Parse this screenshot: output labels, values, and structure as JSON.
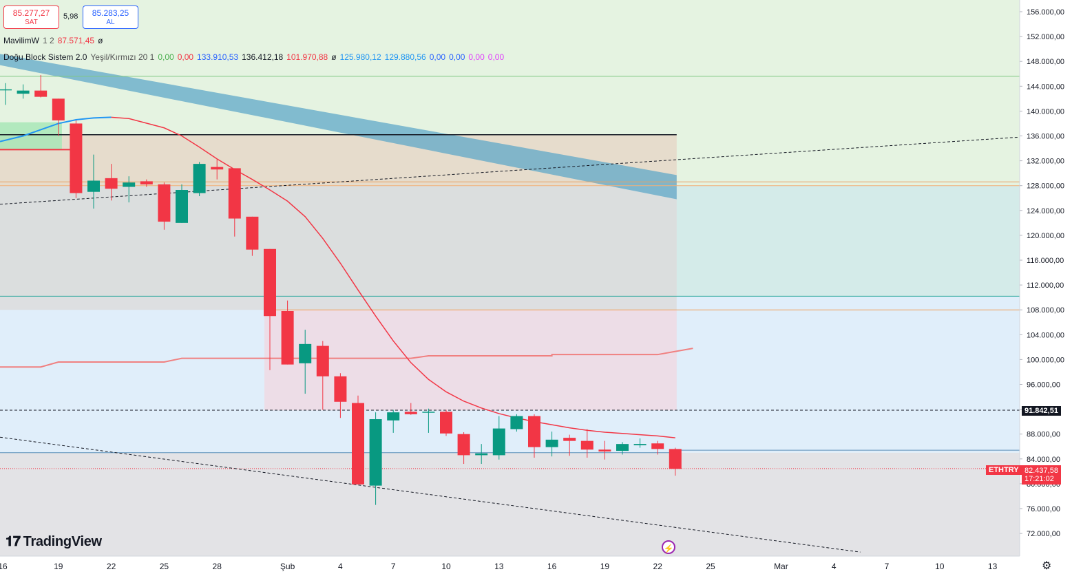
{
  "header": {
    "sell_price": "85.277,27",
    "sell_label": "SAT",
    "spread": "5,98",
    "buy_price": "85.283,25",
    "buy_label": "AL"
  },
  "indicators": [
    {
      "name": "MavilimW",
      "params": "1 2",
      "values": [
        {
          "text": "87.571,45",
          "color": "#f23645"
        },
        {
          "text": "ø",
          "color": "#131722"
        }
      ]
    },
    {
      "name": "Doğu Block Sistem 2.0",
      "params": "Yeşil/Kırmızı 20 1",
      "values": [
        {
          "text": "0,00",
          "color": "#4caf50"
        },
        {
          "text": "0,00",
          "color": "#f23645"
        },
        {
          "text": "133.910,53",
          "color": "#2962ff"
        },
        {
          "text": "136.412,18",
          "color": "#131722"
        },
        {
          "text": "101.970,88",
          "color": "#f23645"
        },
        {
          "text": "ø",
          "color": "#131722"
        },
        {
          "text": "125.980,12",
          "color": "#2196f3"
        },
        {
          "text": "129.880,56",
          "color": "#2196f3"
        },
        {
          "text": "0,00",
          "color": "#2962ff"
        },
        {
          "text": "0,00",
          "color": "#2962ff"
        },
        {
          "text": "0,00",
          "color": "#e040fb"
        },
        {
          "text": "0,00",
          "color": "#e040fb"
        }
      ]
    }
  ],
  "logo_text": "TradingView",
  "icons": {
    "logo": "tradingview-logo-icon",
    "settings": "gear-icon",
    "event": "lightning-bolt-icon"
  },
  "price_labels": {
    "level": "91.842,51",
    "symbol": "ETHTRY",
    "last": "82.437,58",
    "countdown": "17:21:02"
  },
  "chart_data": {
    "type": "candlestick",
    "y_axis": {
      "range": [
        68000,
        158000
      ],
      "tick_step": 4000,
      "ticks": [
        72000,
        76000,
        80000,
        84000,
        88000,
        92000,
        96000,
        100000,
        104000,
        108000,
        112000,
        116000,
        120000,
        124000,
        128000,
        132000,
        136000,
        140000,
        144000,
        148000,
        152000,
        156000
      ],
      "tick_labels": [
        "72.000,00",
        "76.000,00",
        "80.000,00",
        "84.000,00",
        "88.000,00",
        "92.000,00",
        "96.000,00",
        "100.000,00",
        "104.000,00",
        "108.000,00",
        "112.000,00",
        "116.000,00",
        "120.000,00",
        "124.000,00",
        "128.000,00",
        "132.000,00",
        "136.000,00",
        "140.000,00",
        "144.000,00",
        "148.000,00",
        "152.000,00",
        "156.000,00"
      ]
    },
    "x_axis": {
      "labels": [
        {
          "day": 0,
          "text": "16"
        },
        {
          "day": 3,
          "text": "19"
        },
        {
          "day": 6,
          "text": "22"
        },
        {
          "day": 9,
          "text": "25"
        },
        {
          "day": 12,
          "text": "28"
        },
        {
          "day": 16,
          "text": "Şub"
        },
        {
          "day": 19,
          "text": "4"
        },
        {
          "day": 22,
          "text": "7"
        },
        {
          "day": 25,
          "text": "10"
        },
        {
          "day": 28,
          "text": "13"
        },
        {
          "day": 31,
          "text": "16"
        },
        {
          "day": 34,
          "text": "19"
        },
        {
          "day": 37,
          "text": "22"
        },
        {
          "day": 40,
          "text": "25"
        },
        {
          "day": 44,
          "text": "Mar"
        },
        {
          "day": 47,
          "text": "4"
        },
        {
          "day": 50,
          "text": "7"
        },
        {
          "day": 53,
          "text": "10"
        },
        {
          "day": 56,
          "text": "13"
        }
      ],
      "day_range": [
        0,
        57.5
      ]
    },
    "candles": [
      {
        "day": 0,
        "o": 143500,
        "h": 144500,
        "l": 141000,
        "c": 143500
      },
      {
        "day": 1,
        "o": 142800,
        "h": 144300,
        "l": 142000,
        "c": 143300
      },
      {
        "day": 2,
        "o": 143300,
        "h": 145800,
        "l": 142200,
        "c": 142300
      },
      {
        "day": 3,
        "o": 142000,
        "h": 142000,
        "l": 136000,
        "c": 138500
      },
      {
        "day": 4,
        "o": 138000,
        "h": 138500,
        "l": 126000,
        "c": 126800
      },
      {
        "day": 5,
        "o": 127000,
        "h": 133000,
        "l": 124300,
        "c": 128800
      },
      {
        "day": 6,
        "o": 129200,
        "h": 131500,
        "l": 125600,
        "c": 127500
      },
      {
        "day": 7,
        "o": 127800,
        "h": 129500,
        "l": 125300,
        "c": 128500
      },
      {
        "day": 8,
        "o": 128700,
        "h": 129000,
        "l": 127800,
        "c": 128200
      },
      {
        "day": 9,
        "o": 128200,
        "h": 128500,
        "l": 120900,
        "c": 122200
      },
      {
        "day": 10,
        "o": 122000,
        "h": 128200,
        "l": 122000,
        "c": 127300
      },
      {
        "day": 11,
        "o": 126800,
        "h": 131800,
        "l": 126300,
        "c": 131500
      },
      {
        "day": 12,
        "o": 131000,
        "h": 132200,
        "l": 129000,
        "c": 130600
      },
      {
        "day": 13,
        "o": 130800,
        "h": 130800,
        "l": 119800,
        "c": 122700
      },
      {
        "day": 14,
        "o": 123000,
        "h": 123000,
        "l": 116700,
        "c": 117700
      },
      {
        "day": 15,
        "o": 117800,
        "h": 117800,
        "l": 98300,
        "c": 107000
      },
      {
        "day": 16,
        "o": 107800,
        "h": 109500,
        "l": 99200,
        "c": 99200
      },
      {
        "day": 17,
        "o": 99400,
        "h": 104800,
        "l": 94500,
        "c": 102500
      },
      {
        "day": 18,
        "o": 102200,
        "h": 103000,
        "l": 91900,
        "c": 97300
      },
      {
        "day": 19,
        "o": 97300,
        "h": 97800,
        "l": 90600,
        "c": 93200
      },
      {
        "day": 20,
        "o": 93000,
        "h": 94200,
        "l": 79900,
        "c": 79900
      },
      {
        "day": 21,
        "o": 79700,
        "h": 91500,
        "l": 76600,
        "c": 90400
      },
      {
        "day": 22,
        "o": 90200,
        "h": 91900,
        "l": 88200,
        "c": 91500
      },
      {
        "day": 23,
        "o": 91600,
        "h": 93000,
        "l": 91100,
        "c": 91200
      },
      {
        "day": 24,
        "o": 91500,
        "h": 92100,
        "l": 88200,
        "c": 91600
      },
      {
        "day": 25,
        "o": 91600,
        "h": 91900,
        "l": 87700,
        "c": 88100
      },
      {
        "day": 26,
        "o": 88000,
        "h": 88300,
        "l": 83200,
        "c": 84600
      },
      {
        "day": 27,
        "o": 84600,
        "h": 86400,
        "l": 83200,
        "c": 84900
      },
      {
        "day": 28,
        "o": 84600,
        "h": 90900,
        "l": 83900,
        "c": 88900
      },
      {
        "day": 29,
        "o": 88800,
        "h": 91200,
        "l": 88400,
        "c": 90900
      },
      {
        "day": 30,
        "o": 90900,
        "h": 91200,
        "l": 84200,
        "c": 85900
      },
      {
        "day": 31,
        "o": 85900,
        "h": 88400,
        "l": 84400,
        "c": 87100
      },
      {
        "day": 32,
        "o": 87400,
        "h": 87900,
        "l": 84500,
        "c": 86900
      },
      {
        "day": 33,
        "o": 86900,
        "h": 88800,
        "l": 84200,
        "c": 85500
      },
      {
        "day": 34,
        "o": 85500,
        "h": 86900,
        "l": 83900,
        "c": 85200
      },
      {
        "day": 35,
        "o": 85300,
        "h": 86700,
        "l": 84700,
        "c": 86400
      },
      {
        "day": 36,
        "o": 86200,
        "h": 87300,
        "l": 85800,
        "c": 86400
      },
      {
        "day": 37,
        "o": 86500,
        "h": 86900,
        "l": 84700,
        "c": 85600
      },
      {
        "day": 38,
        "o": 85600,
        "h": 85800,
        "l": 81300,
        "c": 82400
      }
    ],
    "mavilim_line": [
      {
        "day": 0,
        "v": 135500
      },
      {
        "day": 2,
        "v": 137500
      },
      {
        "day": 4,
        "v": 138600
      },
      {
        "day": 6,
        "v": 139000
      },
      {
        "day": 7,
        "v": 138800
      },
      {
        "day": 9,
        "v": 137300
      },
      {
        "day": 10,
        "v": 136000
      },
      {
        "day": 11,
        "v": 134200
      },
      {
        "day": 12,
        "v": 132300
      },
      {
        "day": 13,
        "v": 130600
      },
      {
        "day": 14,
        "v": 129000
      },
      {
        "day": 15,
        "v": 127300
      },
      {
        "day": 16,
        "v": 125500
      },
      {
        "day": 17,
        "v": 123000
      },
      {
        "day": 18,
        "v": 119500
      },
      {
        "day": 19,
        "v": 115500
      },
      {
        "day": 20,
        "v": 111200
      },
      {
        "day": 21,
        "v": 107000
      },
      {
        "day": 22,
        "v": 103000
      },
      {
        "day": 23,
        "v": 99500
      },
      {
        "day": 24,
        "v": 96800
      },
      {
        "day": 25,
        "v": 94800
      },
      {
        "day": 26,
        "v": 93300
      },
      {
        "day": 27,
        "v": 92200
      },
      {
        "day": 28,
        "v": 91300
      },
      {
        "day": 29,
        "v": 90600
      },
      {
        "day": 30,
        "v": 90000
      },
      {
        "day": 31,
        "v": 89500
      },
      {
        "day": 32,
        "v": 89000
      },
      {
        "day": 33,
        "v": 88600
      },
      {
        "day": 34,
        "v": 88300
      },
      {
        "day": 35,
        "v": 88100
      },
      {
        "day": 36,
        "v": 87900
      },
      {
        "day": 37,
        "v": 87700
      },
      {
        "day": 38,
        "v": 87400
      }
    ],
    "upper_mavilim_blue": [
      {
        "day": 0,
        "v": 135100
      },
      {
        "day": 1,
        "v": 136000
      },
      {
        "day": 2,
        "v": 137000
      },
      {
        "day": 3,
        "v": 138000
      },
      {
        "day": 4,
        "v": 138600
      },
      {
        "day": 5,
        "v": 138900
      },
      {
        "day": 6,
        "v": 139000
      }
    ],
    "step_line": [
      {
        "day": 0,
        "v": 98800
      },
      {
        "day": 2,
        "v": 98800
      },
      {
        "day": 3,
        "v": 99600
      },
      {
        "day": 9,
        "v": 99600
      },
      {
        "day": 10,
        "v": 100200
      },
      {
        "day": 23,
        "v": 100200
      },
      {
        "day": 24,
        "v": 100600
      },
      {
        "day": 31,
        "v": 100600
      },
      {
        "day": 31,
        "v": 100800
      },
      {
        "day": 37,
        "v": 100800
      },
      {
        "day": 38,
        "v": 101300
      },
      {
        "day": 39,
        "v": 101800
      }
    ],
    "cloud_band": {
      "start_day": 0,
      "end_day": 38,
      "upper_start": 149200,
      "upper_end": 129700,
      "lower_start": 147400,
      "lower_end": 125800
    },
    "rectangles": [
      {
        "x0": 0,
        "x1": 38,
        "y0": 128000,
        "y1": 136200,
        "fill": "#e6d7c8"
      },
      {
        "x0": 0,
        "x1": 38,
        "y0": 108000,
        "y1": 128000,
        "fill": "#dcdcdc"
      },
      {
        "x0": 15,
        "x1": 38,
        "y0": 91800,
        "y1": 108000,
        "fill": "#efd9e3"
      }
    ],
    "zones": [
      {
        "y0": 128000,
        "y1": 158000,
        "fill": "#e5f3e1"
      },
      {
        "y0": 110200,
        "y1": 128000,
        "fill": "#d4ebe9"
      },
      {
        "y0": 85000,
        "y1": 110200,
        "fill": "#e0eefa"
      },
      {
        "y0": 68000,
        "y1": 85000,
        "fill": "#e3e3e6"
      }
    ],
    "horizontal_lines": [
      {
        "v": 145600,
        "color": "#81c784",
        "x0": 0,
        "x1": 57.5,
        "dash": false
      },
      {
        "v": 136200,
        "color": "#131722",
        "x0": 0,
        "x1": 38,
        "dash": false,
        "width": 1.5
      },
      {
        "v": 128600,
        "color": "#e8a065",
        "x0": 0,
        "x1": 57.5,
        "dash": false
      },
      {
        "v": 128000,
        "color": "#f0b07a",
        "x0": 0,
        "x1": 57.5,
        "dash": false
      },
      {
        "v": 110200,
        "color": "#26a69a",
        "x0": 0,
        "x1": 57.5,
        "dash": false
      },
      {
        "v": 108000,
        "color": "#f0a05a",
        "x0": 15,
        "x1": 57.5,
        "dash": false
      },
      {
        "v": 91842.51,
        "color": "#131722",
        "x0": 0,
        "x1": 57.5,
        "dash": true
      },
      {
        "v": 85400,
        "color": "#5b8db8",
        "x0": 38,
        "x1": 57.5,
        "dash": false
      },
      {
        "v": 85000,
        "color": "#5b8db8",
        "x0": 0,
        "x1": 38,
        "dash": false
      },
      {
        "v": 82437.58,
        "color": "#f23645",
        "x0": 0,
        "x1": 57.5,
        "dotted": true
      }
    ],
    "red_hline_left": {
      "v": 133800,
      "x0": 0,
      "x1": 3.7
    },
    "green_box_left": {
      "x0": 0,
      "x1": 3.2,
      "y0": 133800,
      "y1": 138200
    },
    "trend_lines": [
      {
        "d0": 0,
        "v0": 125000,
        "d1": 57.5,
        "v1": 135800,
        "dash": true
      },
      {
        "d0": 0,
        "v0": 87500,
        "d1": 48.5,
        "v1": 69000,
        "dash": true
      }
    ],
    "last_price": 82437.58
  }
}
